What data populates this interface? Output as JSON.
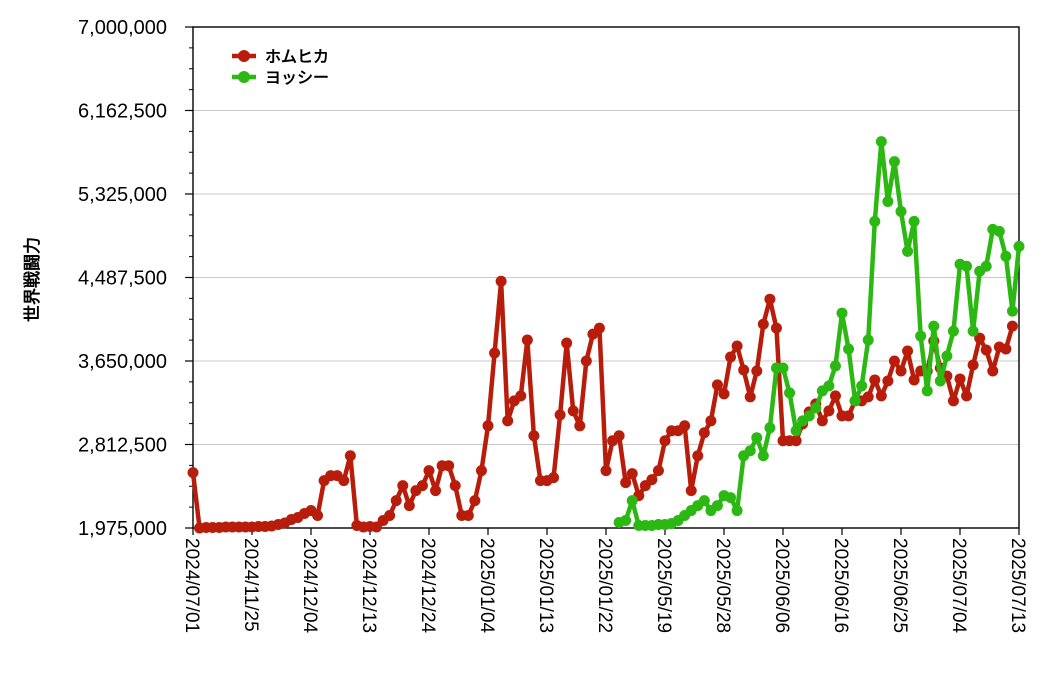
{
  "chart_data": {
    "type": "line",
    "ylabel": "世界戦闘力",
    "xlabel": "",
    "ylim": [
      1975000,
      7000000
    ],
    "yticks": [
      "1,975,000",
      "2,812,500",
      "3,650,000",
      "4,487,500",
      "5,325,000",
      "6,162,500",
      "7,000,000"
    ],
    "ytick_values": [
      1975000,
      2812500,
      3650000,
      4487500,
      5325000,
      6162500,
      7000000
    ],
    "grid": true,
    "legend_position": "top-left",
    "xtick_labels": [
      "2024/07/01",
      "2024/11/25",
      "2024/12/04",
      "2024/12/13",
      "2024/12/24",
      "2025/01/04",
      "2025/01/13",
      "2025/01/22",
      "2025/05/19",
      "2025/05/28",
      "2025/06/06",
      "2025/06/16",
      "2025/06/25",
      "2025/07/04",
      "2025/07/13"
    ],
    "xtick_positions": [
      0,
      9,
      18,
      27,
      36,
      45,
      54,
      63,
      72,
      81,
      90,
      99,
      108,
      117,
      126
    ],
    "x_count": 127,
    "series": [
      {
        "name": "ホムヒカ",
        "color": "#b81d0c",
        "start_index": 0,
        "values": [
          2530000,
          1975000,
          1980000,
          1980000,
          1980000,
          1985000,
          1985000,
          1985000,
          1985000,
          1985000,
          1990000,
          1990000,
          1995000,
          2010000,
          2025000,
          2060000,
          2080000,
          2120000,
          2150000,
          2100000,
          2450000,
          2500000,
          2500000,
          2450000,
          2700000,
          2000000,
          1985000,
          1990000,
          1985000,
          2050000,
          2100000,
          2250000,
          2400000,
          2200000,
          2350000,
          2400000,
          2550000,
          2350000,
          2600000,
          2600000,
          2400000,
          2100000,
          2100000,
          2250000,
          2550000,
          3000000,
          3730000,
          4450000,
          3050000,
          3250000,
          3300000,
          3860000,
          2900000,
          2450000,
          2450000,
          2480000,
          3110000,
          3830000,
          3150000,
          3000000,
          3650000,
          3920000,
          3980000,
          2550000,
          2850000,
          2900000,
          2430000,
          2520000,
          2300000,
          2400000,
          2460000,
          2550000,
          2850000,
          2950000,
          2950000,
          3000000,
          2350000,
          2700000,
          2930000,
          3050000,
          3410000,
          3320000,
          3690000,
          3800000,
          3560000,
          3290000,
          3550000,
          4020000,
          4270000,
          3980000,
          2850000,
          2850000,
          2850000,
          3020000,
          3140000,
          3220000,
          3050000,
          3150000,
          3300000,
          3100000,
          3100000,
          3250000,
          3250000,
          3290000,
          3460000,
          3300000,
          3450000,
          3650000,
          3550000,
          3750000,
          3460000,
          3550000,
          3550000,
          3850000,
          3580000,
          3500000,
          3250000,
          3470000,
          3300000,
          3610000,
          3880000,
          3760000,
          3550000,
          3790000,
          3770000,
          4000000
        ]
      },
      {
        "name": "ヨッシー",
        "color": "#2bb812",
        "start_index": 65,
        "values": [
          2030000,
          2050000,
          2250000,
          2000000,
          2000000,
          2000000,
          2010000,
          2010000,
          2020000,
          2050000,
          2100000,
          2150000,
          2200000,
          2250000,
          2150000,
          2200000,
          2300000,
          2280000,
          2150000,
          2700000,
          2750000,
          2880000,
          2700000,
          2980000,
          3580000,
          3580000,
          3330000,
          2950000,
          3050000,
          3100000,
          3180000,
          3350000,
          3400000,
          3600000,
          4130000,
          3770000,
          3250000,
          3400000,
          3860000,
          5050000,
          5850000,
          5250000,
          5650000,
          5150000,
          4750000,
          5050000,
          3900000,
          3350000,
          4000000,
          3450000,
          3700000,
          3950000,
          4620000,
          4600000,
          3950000,
          4550000,
          4600000,
          4970000,
          4950000,
          4700000,
          4150000,
          4800000
        ]
      }
    ]
  }
}
